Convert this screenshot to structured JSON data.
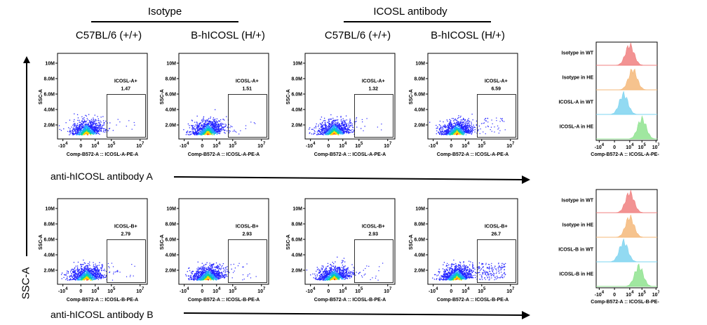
{
  "groups": {
    "isotype": "Isotype",
    "icosl_antibody": "ICOSL antibody"
  },
  "columns": [
    "C57BL/6 (+/+)",
    "B-hICOSL (H/+)",
    "C57BL/6 (+/+)",
    "B-hICOSL (H/+)"
  ],
  "y_axis_label": "SSC-A",
  "row_labels": {
    "a": "anti-hICOSL antibody A",
    "b": "anti-hICOSL antibody B"
  },
  "scatter_ticks": {
    "y": [
      "10M",
      "8.0M",
      "6.0M",
      "4.0M",
      "2.0M"
    ],
    "y_title": "SSC-A"
  },
  "hist_ticks": {
    "x": [
      "-10",
      "4",
      "0",
      "10",
      "4",
      "10",
      "7"
    ]
  },
  "chart_data": [
    {
      "type": "scatter",
      "row": "antibody A",
      "panels": [
        {
          "column": "C57BL/6 (+/+)",
          "gate_label": "ICOSL-A+",
          "gate_value": "1.47",
          "xlabel": "Comp-B572-A :: ICOSL-A-PE-A",
          "ylabel": "SSC-A"
        },
        {
          "column": "B-hICOSL (H/+)",
          "gate_label": "ICOSL-A+",
          "gate_value": "1.51",
          "xlabel": "Comp-B572-A :: ICOSL-A-PE-A",
          "ylabel": "SSC-A"
        },
        {
          "column": "C57BL/6 (+/+)",
          "gate_label": "ICOSL-A+",
          "gate_value": "1.32",
          "xlabel": "Comp-B572-A :: ICOSL-A-PE-A",
          "ylabel": "SSC-A"
        },
        {
          "column": "B-hICOSL (H/+)",
          "gate_label": "ICOSL-A+",
          "gate_value": "6.59",
          "xlabel": "Comp-B572-A :: ICOSL-A-PE-A",
          "ylabel": "SSC-A"
        }
      ]
    },
    {
      "type": "scatter",
      "row": "antibody B",
      "panels": [
        {
          "column": "C57BL/6 (+/+)",
          "gate_label": "ICOSL-B+",
          "gate_value": "2.79",
          "xlabel": "Comp-B572-A :: ICOSL-B-PE-A",
          "ylabel": "SSC-A"
        },
        {
          "column": "B-hICOSL (H/+)",
          "gate_label": "ICOSL-B+",
          "gate_value": "2.93",
          "xlabel": "Comp-B572-A :: ICOSL-B-PE-A",
          "ylabel": "SSC-A"
        },
        {
          "column": "C57BL/6 (+/+)",
          "gate_label": "ICOSL-B+",
          "gate_value": "2.93",
          "xlabel": "Comp-B572-A :: ICOSL-B-PE-A",
          "ylabel": "SSC-A"
        },
        {
          "column": "B-hICOSL (H/+)",
          "gate_label": "ICOSL-B+",
          "gate_value": "26.7",
          "xlabel": "Comp-B572-A :: ICOSL-B-PE-A",
          "ylabel": "SSC-A"
        }
      ]
    },
    {
      "type": "area",
      "row": "antibody A histogram overlay",
      "xlabel": "Comp-B572-A :: ICOSL-A-PE-A",
      "series": [
        {
          "name": "Isotype in WT",
          "color": "#f08080",
          "peak": 3.9
        },
        {
          "name": "Isotype in HE",
          "color": "#f5b97a",
          "peak": 4.0
        },
        {
          "name": "ICOSL-A in WT",
          "color": "#7fd4f0",
          "peak": 3.7
        },
        {
          "name": "ICOSL-A in HE",
          "color": "#8fe38f",
          "peak": 4.3
        }
      ]
    },
    {
      "type": "area",
      "row": "antibody B histogram overlay",
      "xlabel": "Comp-B572-A :: ICOSL-B-PE-A",
      "series": [
        {
          "name": "Isotype in WT",
          "color": "#f08080",
          "peak": 3.9
        },
        {
          "name": "Isotype in HE",
          "color": "#f5b97a",
          "peak": 3.9
        },
        {
          "name": "ICOSL-B in WT",
          "color": "#7fd4f0",
          "peak": 3.7
        },
        {
          "name": "ICOSL-B in HE",
          "color": "#8fe38f",
          "peak": 4.2
        }
      ]
    }
  ]
}
